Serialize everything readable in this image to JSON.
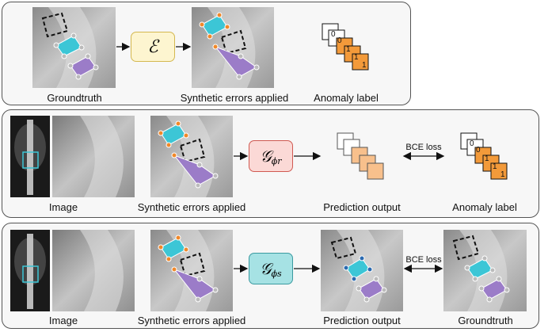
{
  "panel1": {
    "labels": {
      "groundtruth": "Groundtruth",
      "synthetic": "Synthetic errors applied",
      "anomaly": "Anomaly label"
    },
    "operator": "ℰ",
    "stack_values": [
      "0",
      "0",
      "1",
      "1",
      "1"
    ]
  },
  "panel2": {
    "labels": {
      "image": "Image",
      "synthetic": "Synthetic errors applied",
      "prediction": "Prediction output",
      "anomaly": "Anomaly label"
    },
    "network": {
      "symbol": "𝒢",
      "subscript": "ϕr"
    },
    "loss": "BCE loss",
    "stack_values": [
      "0",
      "0",
      "1",
      "1",
      "1"
    ]
  },
  "panel3": {
    "labels": {
      "image": "Image",
      "synthetic": "Synthetic errors applied",
      "prediction": "Prediction output",
      "groundtruth": "Groundtruth"
    },
    "network": {
      "symbol": "𝒢",
      "subscript": "ϕs"
    },
    "loss": "BCE loss"
  },
  "colors": {
    "cyan": "#3cc6d6",
    "purple": "#9b7cc8",
    "operator_fill": "#fdf5d0",
    "operator_border": "#d4b850",
    "gr_fill": "#fbd9d6",
    "gr_border": "#d05a52",
    "gs_fill": "#a6e2e4",
    "gs_border": "#3a9aa0",
    "orange": "#f39a3a",
    "orange_light": "#f8c08c",
    "point_orange": "#f0882a",
    "point_blue": "#2a6ab0"
  }
}
